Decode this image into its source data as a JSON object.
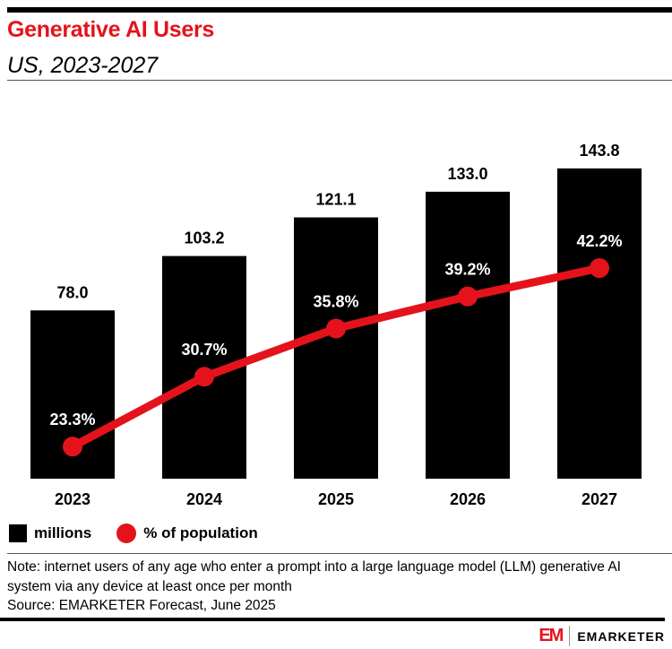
{
  "header": {
    "title": "Generative AI Users",
    "subtitle": "US, 2023-2027"
  },
  "chart_data": {
    "type": "bar+line",
    "categories": [
      "2023",
      "2024",
      "2025",
      "2026",
      "2027"
    ],
    "series": [
      {
        "name": "millions",
        "type": "bar",
        "values": [
          78.0,
          103.2,
          121.1,
          133.0,
          143.8
        ],
        "labels": [
          "78.0",
          "103.2",
          "121.1",
          "133.0",
          "143.8"
        ],
        "color": "#000000",
        "ylim": [
          0,
          172
        ]
      },
      {
        "name": "% of population",
        "type": "line",
        "values": [
          23.3,
          30.7,
          35.8,
          39.2,
          42.2
        ],
        "labels": [
          "23.3%",
          "30.7%",
          "35.8%",
          "39.2%",
          "42.2%"
        ],
        "color": "#e4131b",
        "ylim": [
          19.9,
          59.2
        ]
      }
    ],
    "grid": false,
    "legend": "bottom-left"
  },
  "legend": {
    "bar_label": "millions",
    "line_label": "% of population"
  },
  "footer": {
    "note": "Note: internet users of any age who enter a prompt into a large language model (LLM) generative AI system via any device at least once per month",
    "source": "Source: EMARKETER Forecast, June 2025",
    "logo_mark": "EM",
    "logo_text": "EMARKETER"
  }
}
